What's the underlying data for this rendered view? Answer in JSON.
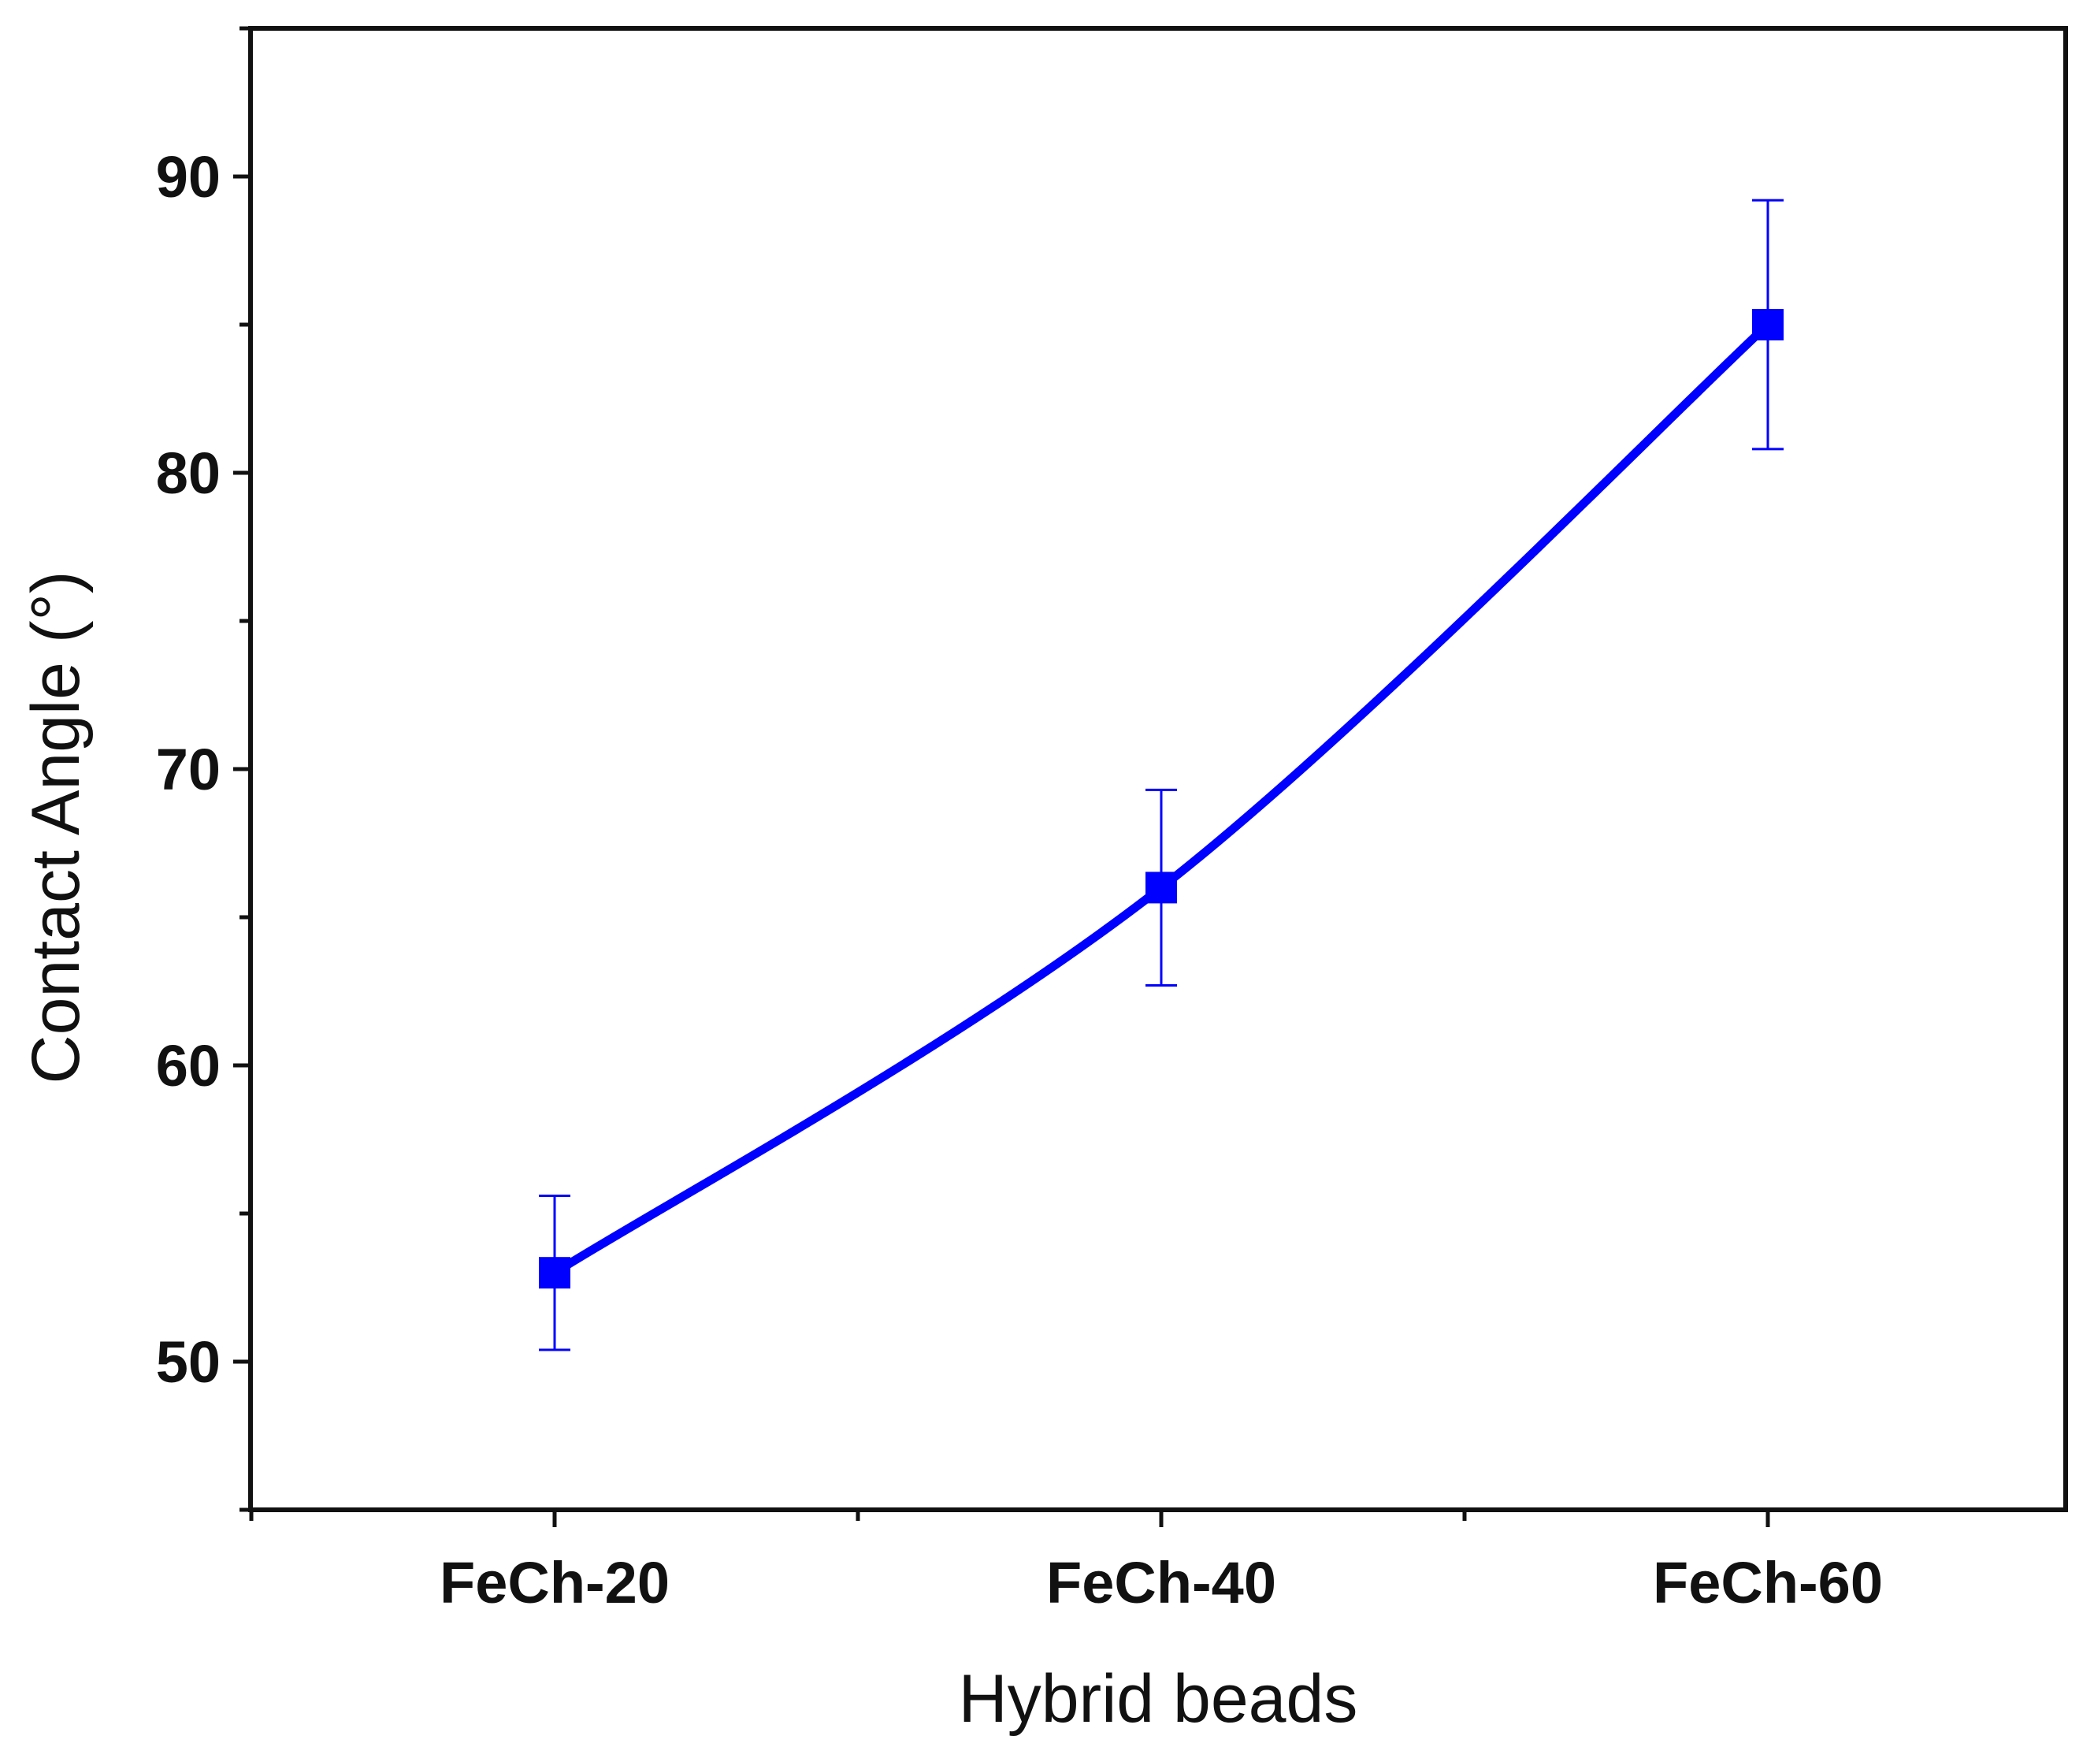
{
  "chart_data": {
    "type": "line",
    "title": "",
    "xlabel": "Hybrid beads",
    "ylabel": "Contact Angle (°)",
    "categories": [
      "FeCh-20",
      "FeCh-40",
      "FeCh-60"
    ],
    "series": [
      {
        "values": [
          53,
          66,
          85
        ],
        "error": [
          2.6,
          3.3,
          4.2
        ],
        "color": "#0000ff",
        "marker": "square"
      }
    ],
    "ylim": [
      45,
      95
    ],
    "yticks": [
      50,
      60,
      70,
      80,
      90
    ],
    "y_minor_step": 5,
    "grid": false,
    "legend": "none"
  }
}
